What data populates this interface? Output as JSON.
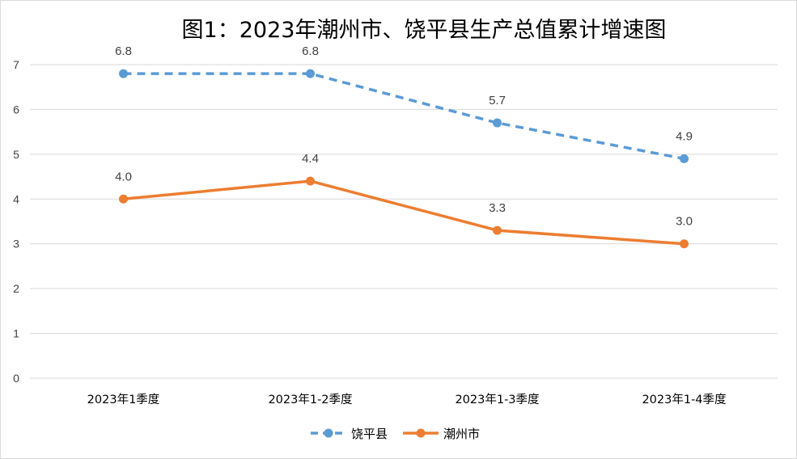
{
  "chart_data": {
    "type": "line",
    "title": "图1：2023年潮州市、饶平县生产总值累计增速图",
    "categories": [
      "2023年1季度",
      "2023年1-2季度",
      "2023年1-3季度",
      "2023年1-4季度"
    ],
    "ylim": [
      0,
      7
    ],
    "yticks": [
      0,
      1,
      2,
      3,
      4,
      5,
      6,
      7
    ],
    "grid": true,
    "legend_position": "bottom",
    "series": [
      {
        "name": "饶平县",
        "values": [
          6.8,
          6.8,
          5.7,
          4.9
        ],
        "labels": [
          "6.8",
          "6.8",
          "5.7",
          "4.9"
        ],
        "color": "#5b9bd5",
        "line_style": "dashed"
      },
      {
        "name": "潮州市",
        "values": [
          4.0,
          4.4,
          3.3,
          3.0
        ],
        "labels": [
          "4.0",
          "4.4",
          "3.3",
          "3.0"
        ],
        "color": "#ed7d31",
        "line_style": "solid"
      }
    ]
  }
}
